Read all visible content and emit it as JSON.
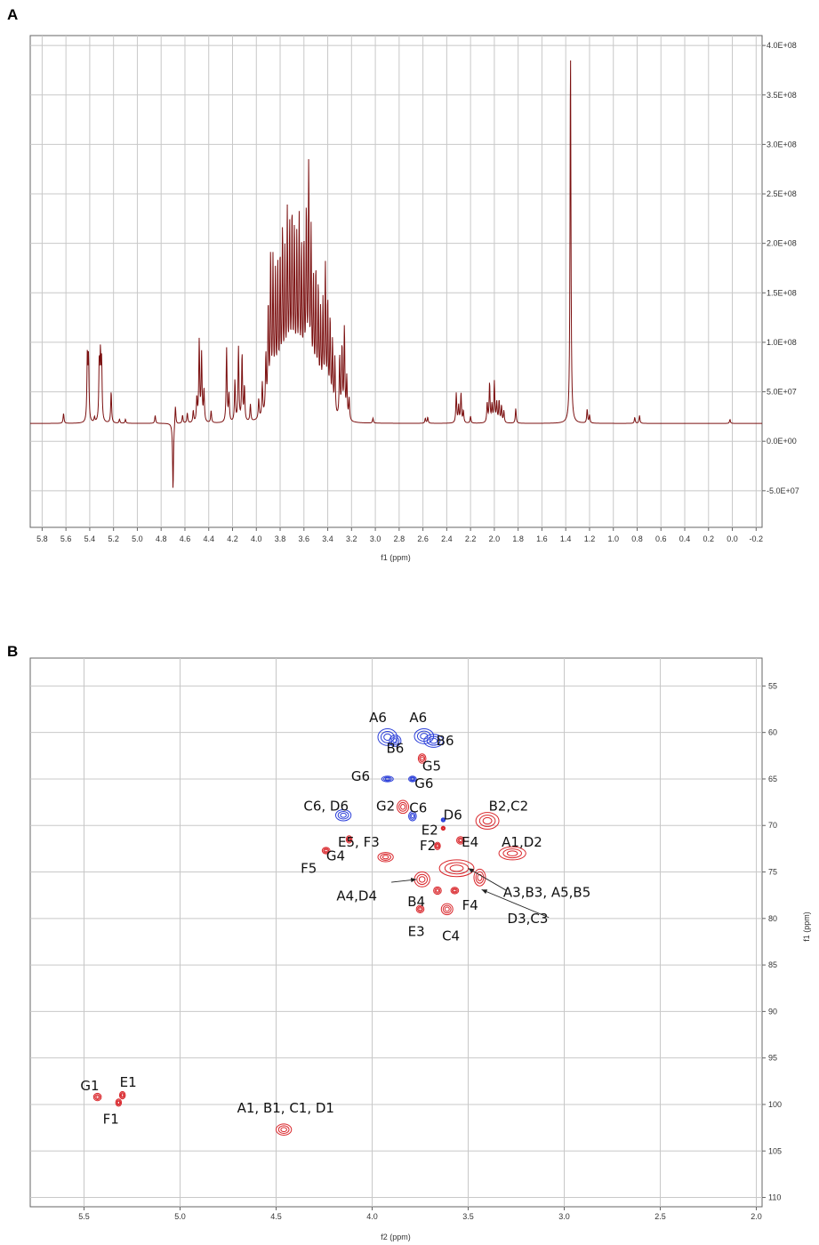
{
  "chart_data": [
    {
      "panel": "A",
      "type": "line",
      "xlabel": "f1 (ppm)",
      "ylabel": "",
      "xlim": [
        5.9,
        -0.25
      ],
      "ylim": [
        -87000000.0,
        410000000.0
      ],
      "x_ticks": [
        "5.8",
        "5.6",
        "5.4",
        "5.2",
        "5.0",
        "4.8",
        "4.6",
        "4.4",
        "4.2",
        "4.0",
        "3.8",
        "3.6",
        "3.4",
        "3.2",
        "3.0",
        "2.8",
        "2.6",
        "2.4",
        "2.2",
        "2.0",
        "1.8",
        "1.6",
        "1.4",
        "1.2",
        "1.0",
        "0.8",
        "0.6",
        "0.4",
        "0.2",
        "0.0",
        "-0.2"
      ],
      "y_ticks": [
        {
          "label": "4.0E+08",
          "value": 400000000.0
        },
        {
          "label": "3.5E+08",
          "value": 350000000.0
        },
        {
          "label": "3.0E+08",
          "value": 300000000.0
        },
        {
          "label": "2.5E+08",
          "value": 250000000.0
        },
        {
          "label": "2.0E+08",
          "value": 200000000.0
        },
        {
          "label": "1.5E+08",
          "value": 150000000.0
        },
        {
          "label": "1.0E+08",
          "value": 100000000.0
        },
        {
          "label": "5.0E+07",
          "value": 50000000.0
        },
        {
          "label": "0.0E+00",
          "value": 0
        },
        {
          "label": "-5.0E+07",
          "value": -50000000.0
        }
      ],
      "line_color": "#7b1010",
      "baseline": 18000000.0,
      "peaks": [
        [
          5.62,
          28000000.0
        ],
        [
          5.42,
          85000000.0
        ],
        [
          5.41,
          79000000.0
        ],
        [
          5.36,
          23000000.0
        ],
        [
          5.32,
          76000000.0
        ],
        [
          5.31,
          79000000.0
        ],
        [
          5.3,
          75000000.0
        ],
        [
          5.22,
          50000000.0
        ],
        [
          5.15,
          22000000.0
        ],
        [
          5.1,
          22000000.0
        ],
        [
          4.85,
          26000000.0
        ],
        [
          4.7,
          -50000000.0
        ],
        [
          4.68,
          38000000.0
        ],
        [
          4.62,
          26000000.0
        ],
        [
          4.58,
          28000000.0
        ],
        [
          4.53,
          30000000.0
        ],
        [
          4.5,
          42000000.0
        ],
        [
          4.48,
          100000000.0
        ],
        [
          4.46,
          86000000.0
        ],
        [
          4.44,
          50000000.0
        ],
        [
          4.38,
          30000000.0
        ],
        [
          4.25,
          93000000.0
        ],
        [
          4.23,
          46000000.0
        ],
        [
          4.18,
          60000000.0
        ],
        [
          4.15,
          93000000.0
        ],
        [
          4.12,
          86000000.0
        ],
        [
          4.1,
          53000000.0
        ],
        [
          4.05,
          35000000.0
        ],
        [
          3.98,
          38000000.0
        ],
        [
          3.95,
          52000000.0
        ],
        [
          3.92,
          76000000.0
        ],
        [
          3.9,
          123000000.0
        ],
        [
          3.88,
          170000000.0
        ],
        [
          3.86,
          162000000.0
        ],
        [
          3.84,
          145000000.0
        ],
        [
          3.82,
          152000000.0
        ],
        [
          3.8,
          158000000.0
        ],
        [
          3.78,
          182000000.0
        ],
        [
          3.76,
          156000000.0
        ],
        [
          3.74,
          195000000.0
        ],
        [
          3.72,
          180000000.0
        ],
        [
          3.7,
          192000000.0
        ],
        [
          3.68,
          175000000.0
        ],
        [
          3.66,
          166000000.0
        ],
        [
          3.64,
          185000000.0
        ],
        [
          3.62,
          155000000.0
        ],
        [
          3.6,
          162000000.0
        ],
        [
          3.58,
          195000000.0
        ],
        [
          3.56,
          242000000.0
        ],
        [
          3.54,
          178000000.0
        ],
        [
          3.52,
          132000000.0
        ],
        [
          3.5,
          145000000.0
        ],
        [
          3.48,
          132000000.0
        ],
        [
          3.46,
          110000000.0
        ],
        [
          3.44,
          120000000.0
        ],
        [
          3.42,
          160000000.0
        ],
        [
          3.4,
          125000000.0
        ],
        [
          3.38,
          110000000.0
        ],
        [
          3.36,
          90000000.0
        ],
        [
          3.34,
          75000000.0
        ],
        [
          3.3,
          80000000.0
        ],
        [
          3.28,
          90000000.0
        ],
        [
          3.26,
          110000000.0
        ],
        [
          3.24,
          60000000.0
        ],
        [
          3.22,
          40000000.0
        ],
        [
          3.02,
          23000000.0
        ],
        [
          2.58,
          23000000.0
        ],
        [
          2.56,
          24000000.0
        ],
        [
          2.32,
          48000000.0
        ],
        [
          2.3,
          35000000.0
        ],
        [
          2.28,
          48000000.0
        ],
        [
          2.26,
          30000000.0
        ],
        [
          2.2,
          25000000.0
        ],
        [
          2.06,
          38000000.0
        ],
        [
          2.04,
          58000000.0
        ],
        [
          2.02,
          35000000.0
        ],
        [
          2.0,
          59000000.0
        ],
        [
          1.98,
          38000000.0
        ],
        [
          1.96,
          40000000.0
        ],
        [
          1.94,
          35000000.0
        ],
        [
          1.92,
          30000000.0
        ],
        [
          1.82,
          33000000.0
        ],
        [
          1.36,
          395000000.0
        ],
        [
          1.22,
          32000000.0
        ],
        [
          1.2,
          26000000.0
        ],
        [
          0.82,
          24000000.0
        ],
        [
          0.78,
          26000000.0
        ],
        [
          0.02,
          22000000.0
        ]
      ]
    },
    {
      "panel": "B",
      "type": "contour",
      "xlabel": "f2 (ppm)",
      "ylabel": "f1 (ppm)",
      "xlim": [
        5.78,
        1.97
      ],
      "ylim": [
        52,
        111
      ],
      "x_ticks": [
        "5.5",
        "5.0",
        "4.5",
        "4.0",
        "3.5",
        "3.0",
        "2.5",
        "2.0"
      ],
      "y_ticks": [
        "55",
        "60",
        "65",
        "70",
        "75",
        "80",
        "85",
        "90",
        "95",
        "100",
        "105",
        "110"
      ],
      "positive_color": "#d9262b",
      "negative_color": "#2b3fd9",
      "cross_peaks": [
        {
          "x": 3.92,
          "y": 60.5,
          "rx": 0.05,
          "ry": 0.9,
          "c": "neg"
        },
        {
          "x": 3.88,
          "y": 60.9,
          "rx": 0.03,
          "ry": 0.6,
          "c": "neg"
        },
        {
          "x": 3.73,
          "y": 60.4,
          "rx": 0.05,
          "ry": 0.8,
          "c": "neg"
        },
        {
          "x": 3.68,
          "y": 60.9,
          "rx": 0.05,
          "ry": 0.7,
          "c": "neg"
        },
        {
          "x": 3.74,
          "y": 62.8,
          "rx": 0.02,
          "ry": 0.5,
          "c": "pos"
        },
        {
          "x": 3.92,
          "y": 65.0,
          "rx": 0.03,
          "ry": 0.3,
          "c": "neg"
        },
        {
          "x": 3.79,
          "y": 65.0,
          "rx": 0.02,
          "ry": 0.3,
          "c": "neg"
        },
        {
          "x": 4.15,
          "y": 68.9,
          "rx": 0.04,
          "ry": 0.6,
          "c": "neg"
        },
        {
          "x": 3.84,
          "y": 68.0,
          "rx": 0.03,
          "ry": 0.7,
          "c": "pos"
        },
        {
          "x": 3.79,
          "y": 69.0,
          "rx": 0.02,
          "ry": 0.5,
          "c": "neg"
        },
        {
          "x": 3.63,
          "y": 69.4,
          "rx": 0.01,
          "ry": 0.2,
          "c": "neg"
        },
        {
          "x": 3.63,
          "y": 70.3,
          "rx": 0.01,
          "ry": 0.2,
          "c": "pos"
        },
        {
          "x": 3.4,
          "y": 69.5,
          "rx": 0.06,
          "ry": 0.9,
          "c": "pos"
        },
        {
          "x": 3.54,
          "y": 71.6,
          "rx": 0.02,
          "ry": 0.4,
          "c": "pos"
        },
        {
          "x": 3.66,
          "y": 72.2,
          "rx": 0.015,
          "ry": 0.4,
          "c": "pos"
        },
        {
          "x": 4.12,
          "y": 71.5,
          "rx": 0.015,
          "ry": 0.4,
          "c": "pos"
        },
        {
          "x": 4.24,
          "y": 72.7,
          "rx": 0.02,
          "ry": 0.35,
          "c": "pos"
        },
        {
          "x": 3.27,
          "y": 73.0,
          "rx": 0.07,
          "ry": 0.7,
          "c": "pos"
        },
        {
          "x": 3.93,
          "y": 73.4,
          "rx": 0.04,
          "ry": 0.5,
          "c": "pos"
        },
        {
          "x": 3.56,
          "y": 74.6,
          "rx": 0.09,
          "ry": 0.9,
          "c": "pos"
        },
        {
          "x": 3.44,
          "y": 75.6,
          "rx": 0.03,
          "ry": 0.9,
          "c": "pos"
        },
        {
          "x": 3.74,
          "y": 75.8,
          "rx": 0.04,
          "ry": 0.8,
          "c": "pos"
        },
        {
          "x": 3.57,
          "y": 77.0,
          "rx": 0.02,
          "ry": 0.35,
          "c": "pos"
        },
        {
          "x": 3.66,
          "y": 77.0,
          "rx": 0.02,
          "ry": 0.4,
          "c": "pos"
        },
        {
          "x": 3.75,
          "y": 79.0,
          "rx": 0.02,
          "ry": 0.4,
          "c": "pos"
        },
        {
          "x": 3.61,
          "y": 79.0,
          "rx": 0.03,
          "ry": 0.6,
          "c": "pos"
        },
        {
          "x": 5.43,
          "y": 99.2,
          "rx": 0.02,
          "ry": 0.4,
          "c": "pos"
        },
        {
          "x": 5.3,
          "y": 99.0,
          "rx": 0.015,
          "ry": 0.4,
          "c": "pos"
        },
        {
          "x": 5.32,
          "y": 99.8,
          "rx": 0.015,
          "ry": 0.4,
          "c": "pos"
        },
        {
          "x": 4.46,
          "y": 102.7,
          "rx": 0.04,
          "ry": 0.6,
          "c": "pos"
        }
      ],
      "annotations": [
        {
          "text": "A6",
          "x": 3.97,
          "y": 58.4
        },
        {
          "text": "A6",
          "x": 3.76,
          "y": 58.4
        },
        {
          "text": "B6",
          "x": 3.88,
          "y": 61.7
        },
        {
          "text": "B6",
          "x": 3.62,
          "y": 60.9
        },
        {
          "text": "G5",
          "x": 3.69,
          "y": 63.6
        },
        {
          "text": "G6",
          "x": 4.06,
          "y": 64.7
        },
        {
          "text": "G6",
          "x": 3.73,
          "y": 65.5
        },
        {
          "text": "C6, D6",
          "x": 4.24,
          "y": 67.9
        },
        {
          "text": "G2",
          "x": 3.93,
          "y": 67.9
        },
        {
          "text": "C6",
          "x": 3.76,
          "y": 68.1
        },
        {
          "text": "D6",
          "x": 3.58,
          "y": 68.9
        },
        {
          "text": "B2,C2",
          "x": 3.29,
          "y": 67.9
        },
        {
          "text": "E2",
          "x": 3.7,
          "y": 70.5
        },
        {
          "text": "E5, F3",
          "x": 4.07,
          "y": 71.8
        },
        {
          "text": "F2",
          "x": 3.71,
          "y": 72.2
        },
        {
          "text": "E4",
          "x": 3.49,
          "y": 71.8
        },
        {
          "text": "A1,D2",
          "x": 3.22,
          "y": 71.8
        },
        {
          "text": "G4",
          "x": 4.19,
          "y": 73.3
        },
        {
          "text": "F5",
          "x": 4.33,
          "y": 74.6
        },
        {
          "text": "A3,B3, A5,B5",
          "x": 3.09,
          "y": 77.2
        },
        {
          "text": "A4,D4",
          "x": 4.08,
          "y": 77.6
        },
        {
          "text": "B4",
          "x": 3.77,
          "y": 78.2
        },
        {
          "text": "F4",
          "x": 3.49,
          "y": 78.6
        },
        {
          "text": "D3,C3",
          "x": 3.19,
          "y": 80.0
        },
        {
          "text": "E3",
          "x": 3.77,
          "y": 81.4
        },
        {
          "text": "C4",
          "x": 3.59,
          "y": 81.9
        },
        {
          "text": "G1",
          "x": 5.47,
          "y": 98.0
        },
        {
          "text": "E1",
          "x": 5.27,
          "y": 97.6
        },
        {
          "text": "F1",
          "x": 5.36,
          "y": 101.6
        },
        {
          "text": "A1, B1, C1, D1",
          "x": 4.45,
          "y": 100.4
        }
      ],
      "arrows": [
        {
          "from": [
            3.9,
            76.1
          ],
          "to": [
            3.77,
            75.8
          ]
        },
        {
          "from": [
            3.3,
            77.0
          ],
          "to": [
            3.5,
            74.6
          ]
        },
        {
          "from": [
            3.08,
            79.9
          ],
          "to": [
            3.43,
            76.9
          ]
        }
      ]
    }
  ]
}
